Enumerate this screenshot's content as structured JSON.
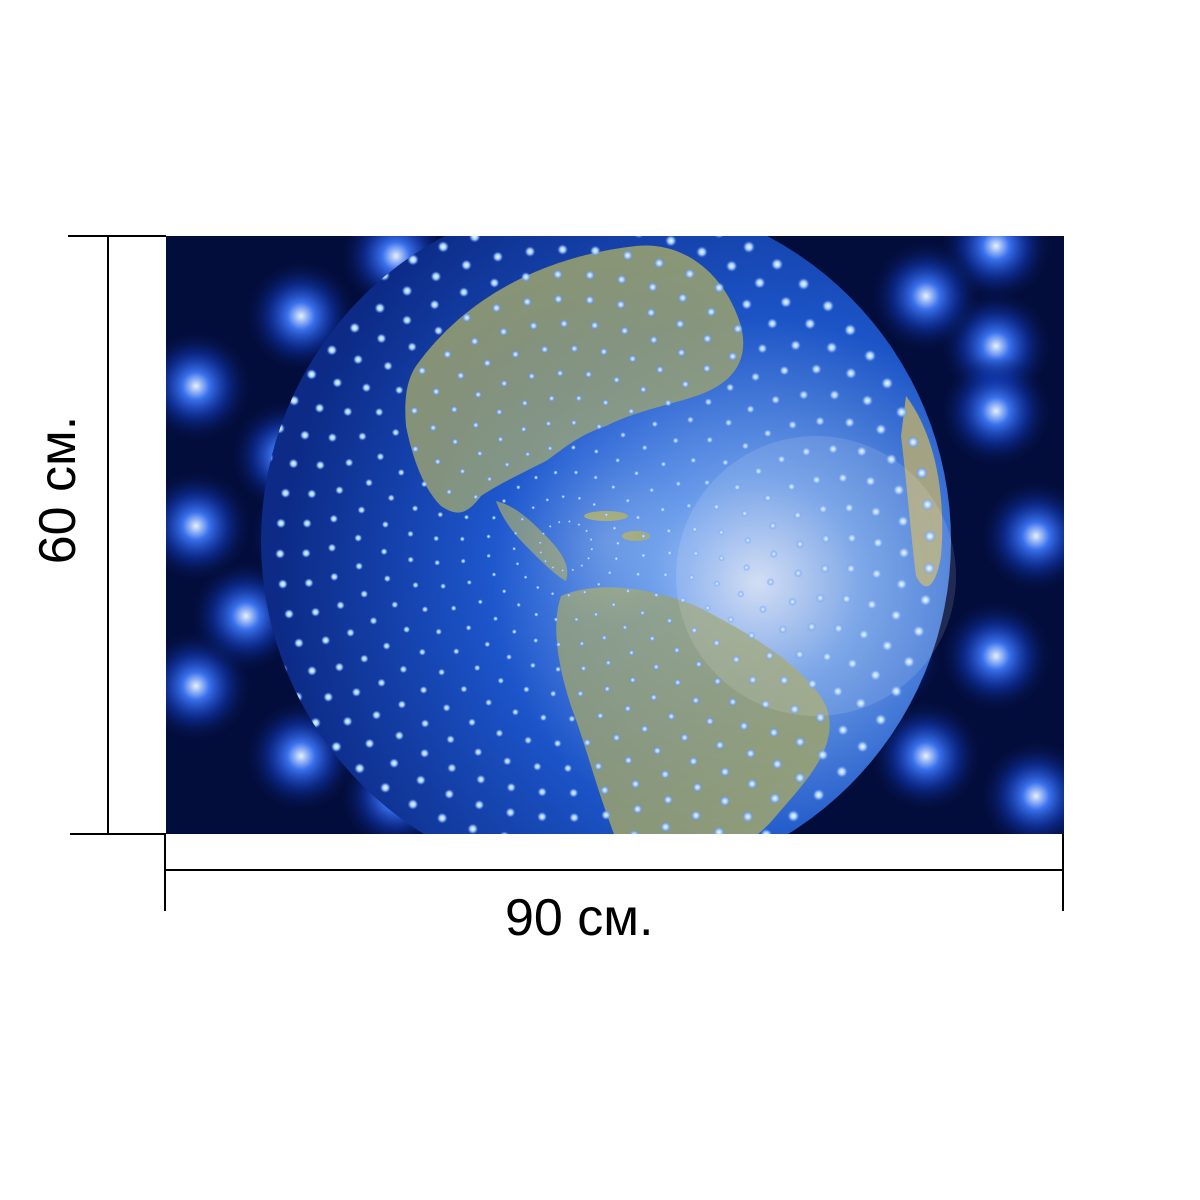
{
  "dimensions": {
    "width_label": "90 см.",
    "height_label": "60 см."
  },
  "artwork": {
    "subject": "globe-with-blue-light-dots",
    "colors": {
      "background_dark": "#030d3c",
      "background_glow": "#1f55ff",
      "ocean": "#1a4bb8",
      "land": "#a2a86c",
      "light_dot": "#cfe6ff"
    }
  }
}
